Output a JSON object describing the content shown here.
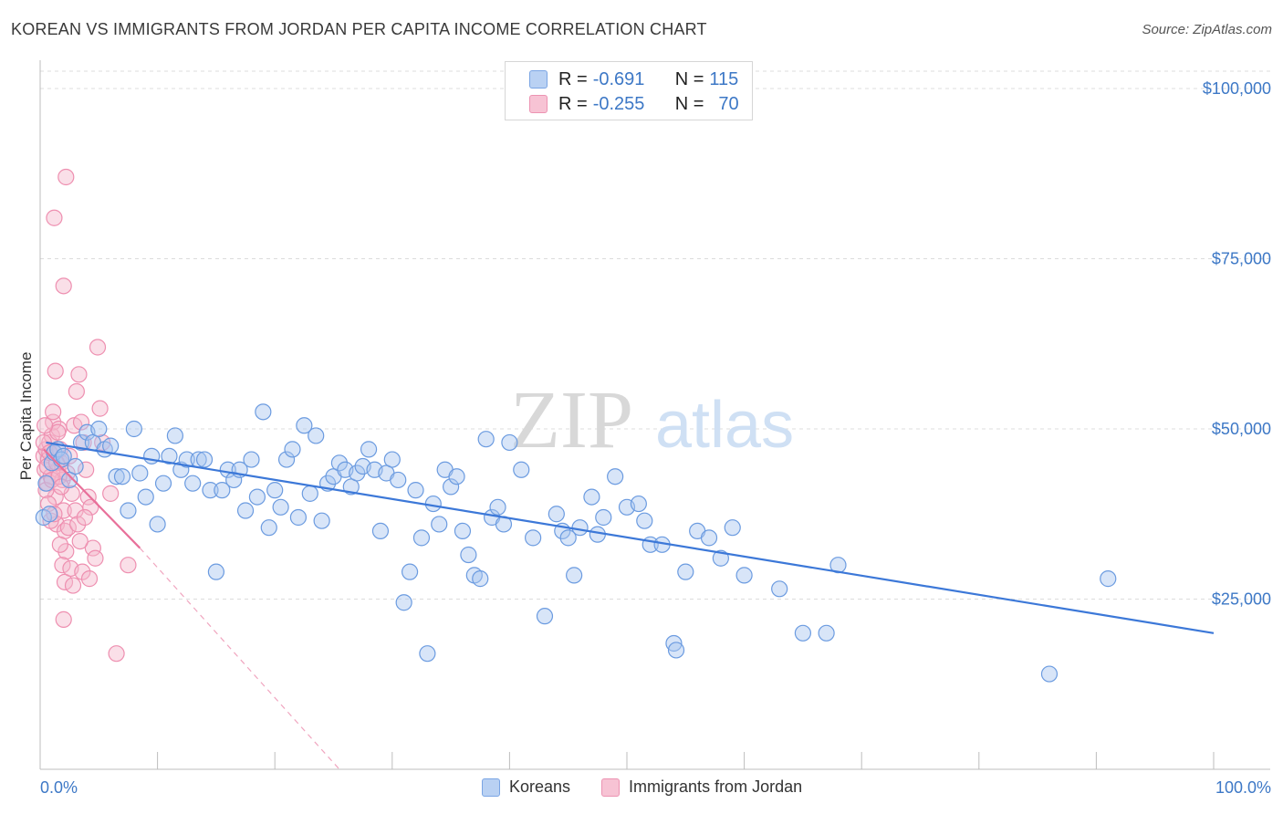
{
  "title": "KOREAN VS IMMIGRANTS FROM JORDAN PER CAPITA INCOME CORRELATION CHART",
  "source": "Source: ZipAtlas.com",
  "watermark": {
    "zip": "ZIP",
    "atlas": "atlas"
  },
  "legend": {
    "row1": {
      "r_label": "R = ",
      "r_value": "-0.691",
      "n_label": "N = ",
      "n_value": "115"
    },
    "row2": {
      "r_label": "R = ",
      "r_value": "-0.255",
      "n_label": "N = ",
      "n_value": "70"
    }
  },
  "bottom_legend": {
    "koreans": "Koreans",
    "jordan": "Immigrants from Jordan"
  },
  "colors": {
    "blue": "#3c78d8",
    "blue_fill": "#a9c6f0",
    "pink": "#e8709a",
    "pink_fill": "#f5b8cc",
    "tick": "#3d78c6"
  },
  "chart_data": {
    "type": "scatter",
    "ylabel": "Per Capita Income",
    "x_tick_labels": {
      "left": "0.0%",
      "right": "100.0%"
    },
    "xlim": [
      0,
      100
    ],
    "ylim": [
      0,
      105000
    ],
    "y_ticks": [
      {
        "value": 25000,
        "label": "$25,000"
      },
      {
        "value": 50000,
        "label": "$50,000"
      },
      {
        "value": 75000,
        "label": "$75,000"
      },
      {
        "value": 100000,
        "label": "$100,000"
      }
    ],
    "grid": true,
    "series": [
      {
        "name": "Koreans",
        "color": "#3c78d8",
        "trend": {
          "x": [
            0.5,
            100
          ],
          "y": [
            48000,
            20000
          ]
        },
        "points": [
          [
            0.3,
            37000
          ],
          [
            0.5,
            42000
          ],
          [
            0.8,
            37500
          ],
          [
            1.0,
            45000
          ],
          [
            1.2,
            46500
          ],
          [
            1.5,
            47000
          ],
          [
            1.8,
            45500
          ],
          [
            2.0,
            46000
          ],
          [
            2.5,
            42500
          ],
          [
            3.0,
            44500
          ],
          [
            3.5,
            48000
          ],
          [
            4.0,
            49500
          ],
          [
            4.5,
            48000
          ],
          [
            5.0,
            50000
          ],
          [
            5.5,
            47000
          ],
          [
            6.0,
            47500
          ],
          [
            6.5,
            43000
          ],
          [
            7.0,
            43000
          ],
          [
            7.5,
            38000
          ],
          [
            8.0,
            50000
          ],
          [
            8.5,
            43500
          ],
          [
            9.0,
            40000
          ],
          [
            9.5,
            46000
          ],
          [
            10.0,
            36000
          ],
          [
            10.5,
            42000
          ],
          [
            11.0,
            46000
          ],
          [
            11.5,
            49000
          ],
          [
            12.0,
            44000
          ],
          [
            12.5,
            45500
          ],
          [
            13.0,
            42000
          ],
          [
            13.5,
            45500
          ],
          [
            14.0,
            45500
          ],
          [
            14.5,
            41000
          ],
          [
            15.0,
            29000
          ],
          [
            15.5,
            41000
          ],
          [
            16.0,
            44000
          ],
          [
            16.5,
            42500
          ],
          [
            17.0,
            44000
          ],
          [
            17.5,
            38000
          ],
          [
            18.0,
            45500
          ],
          [
            18.5,
            40000
          ],
          [
            19.0,
            52500
          ],
          [
            19.5,
            35500
          ],
          [
            20.0,
            41000
          ],
          [
            20.5,
            38500
          ],
          [
            21.0,
            45500
          ],
          [
            21.5,
            47000
          ],
          [
            22.0,
            37000
          ],
          [
            22.5,
            50500
          ],
          [
            23.0,
            40500
          ],
          [
            23.5,
            49000
          ],
          [
            24.0,
            36500
          ],
          [
            24.5,
            42000
          ],
          [
            25.0,
            43000
          ],
          [
            25.5,
            45000
          ],
          [
            26.0,
            44000
          ],
          [
            26.5,
            41500
          ],
          [
            27.0,
            43500
          ],
          [
            27.5,
            44500
          ],
          [
            28.0,
            47000
          ],
          [
            28.5,
            44000
          ],
          [
            29.0,
            35000
          ],
          [
            29.5,
            43500
          ],
          [
            30.0,
            45500
          ],
          [
            30.5,
            42500
          ],
          [
            31.0,
            24500
          ],
          [
            31.5,
            29000
          ],
          [
            32.0,
            41000
          ],
          [
            32.5,
            34000
          ],
          [
            33.0,
            17000
          ],
          [
            33.5,
            39000
          ],
          [
            34.0,
            36000
          ],
          [
            34.5,
            44000
          ],
          [
            35.0,
            41500
          ],
          [
            35.5,
            43000
          ],
          [
            36.0,
            35000
          ],
          [
            36.5,
            31500
          ],
          [
            37.0,
            28500
          ],
          [
            37.5,
            28000
          ],
          [
            38.0,
            48500
          ],
          [
            38.5,
            37000
          ],
          [
            39.0,
            38500
          ],
          [
            39.5,
            36000
          ],
          [
            40.0,
            48000
          ],
          [
            41.0,
            44000
          ],
          [
            42.0,
            34000
          ],
          [
            43.0,
            22500
          ],
          [
            44.0,
            37500
          ],
          [
            44.5,
            35000
          ],
          [
            45.0,
            34000
          ],
          [
            45.5,
            28500
          ],
          [
            46.0,
            35500
          ],
          [
            47.0,
            40000
          ],
          [
            47.5,
            34500
          ],
          [
            48.0,
            37000
          ],
          [
            49.0,
            43000
          ],
          [
            50.0,
            38500
          ],
          [
            51.0,
            39000
          ],
          [
            51.5,
            36500
          ],
          [
            52.0,
            33000
          ],
          [
            53.0,
            33000
          ],
          [
            54.0,
            18500
          ],
          [
            54.2,
            17500
          ],
          [
            55.0,
            29000
          ],
          [
            56.0,
            35000
          ],
          [
            57.0,
            34000
          ],
          [
            58.0,
            31000
          ],
          [
            59.0,
            35500
          ],
          [
            60.0,
            28500
          ],
          [
            63.0,
            26500
          ],
          [
            65.0,
            20000
          ],
          [
            67.0,
            20000
          ],
          [
            68.0,
            30000
          ],
          [
            86.0,
            14000
          ],
          [
            91.0,
            28000
          ]
        ]
      },
      {
        "name": "Immigrants from Jordan",
        "color": "#e8709a",
        "trend": {
          "x": [
            0.3,
            8.5
          ],
          "y": [
            47000,
            32500
          ]
        },
        "trend_ext": {
          "x": [
            8.5,
            25.5
          ],
          "y": [
            32500,
            0
          ]
        },
        "points": [
          [
            0.3,
            46000
          ],
          [
            0.4,
            44000
          ],
          [
            0.5,
            47000
          ],
          [
            0.6,
            42000
          ],
          [
            0.7,
            45500
          ],
          [
            0.8,
            48000
          ],
          [
            0.9,
            43000
          ],
          [
            1.0,
            49000
          ],
          [
            1.1,
            51000
          ],
          [
            1.2,
            46500
          ],
          [
            1.3,
            40000
          ],
          [
            1.4,
            36000
          ],
          [
            1.5,
            44000
          ],
          [
            1.6,
            50000
          ],
          [
            1.7,
            47000
          ],
          [
            1.8,
            45000
          ],
          [
            1.9,
            42500
          ],
          [
            2.0,
            38000
          ],
          [
            2.1,
            35000
          ],
          [
            2.2,
            32000
          ],
          [
            0.3,
            48000
          ],
          [
            0.5,
            41000
          ],
          [
            0.7,
            39000
          ],
          [
            0.9,
            36500
          ],
          [
            1.1,
            52500
          ],
          [
            1.3,
            58500
          ],
          [
            1.5,
            49500
          ],
          [
            1.7,
            33000
          ],
          [
            1.9,
            30000
          ],
          [
            2.1,
            27500
          ],
          [
            2.3,
            43500
          ],
          [
            2.5,
            46000
          ],
          [
            2.7,
            40500
          ],
          [
            2.9,
            50500
          ],
          [
            3.1,
            55500
          ],
          [
            3.3,
            58000
          ],
          [
            3.5,
            51000
          ],
          [
            3.7,
            48000
          ],
          [
            3.9,
            44000
          ],
          [
            4.1,
            40000
          ],
          [
            4.3,
            38500
          ],
          [
            4.5,
            32500
          ],
          [
            4.7,
            31000
          ],
          [
            4.9,
            62000
          ],
          [
            5.1,
            53000
          ],
          [
            5.3,
            48000
          ],
          [
            0.4,
            50500
          ],
          [
            0.6,
            44500
          ],
          [
            0.8,
            46500
          ],
          [
            1.0,
            42500
          ],
          [
            1.2,
            37500
          ],
          [
            1.4,
            45000
          ],
          [
            1.6,
            43000
          ],
          [
            1.8,
            41500
          ],
          [
            2.0,
            71000
          ],
          [
            2.2,
            87000
          ],
          [
            1.2,
            81000
          ],
          [
            2.4,
            35500
          ],
          [
            2.6,
            29500
          ],
          [
            2.8,
            27000
          ],
          [
            3.0,
            38000
          ],
          [
            3.2,
            36000
          ],
          [
            3.4,
            33500
          ],
          [
            3.6,
            29000
          ],
          [
            6.5,
            17000
          ],
          [
            7.5,
            30000
          ],
          [
            2.0,
            22000
          ],
          [
            6.0,
            40500
          ],
          [
            3.8,
            37000
          ],
          [
            4.2,
            28000
          ]
        ]
      }
    ]
  }
}
